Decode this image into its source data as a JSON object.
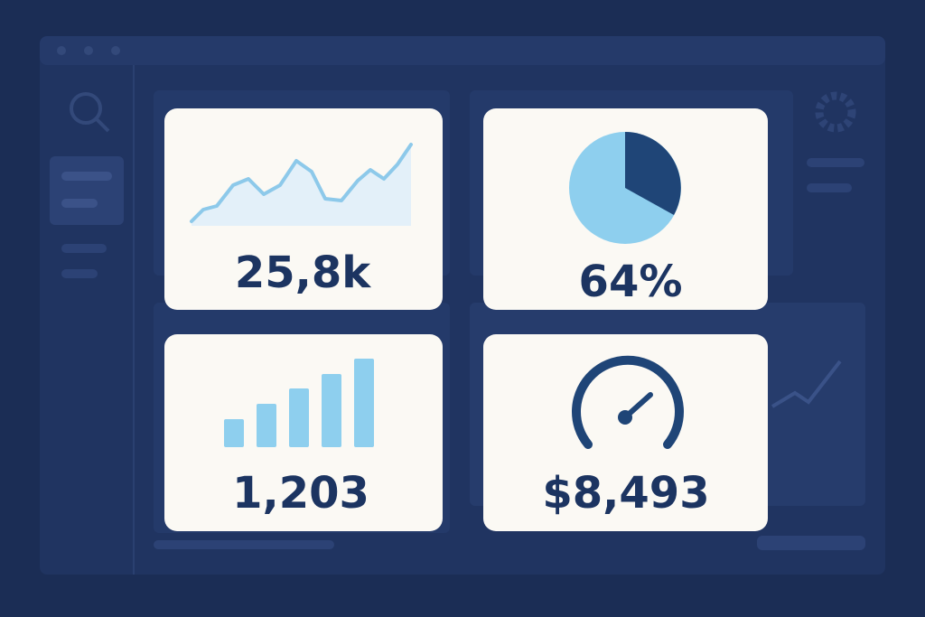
{
  "cards": [
    {
      "value": "25,8k"
    },
    {
      "value": "64%"
    },
    {
      "value": "1,203"
    },
    {
      "value": "$8,493"
    }
  ]
}
